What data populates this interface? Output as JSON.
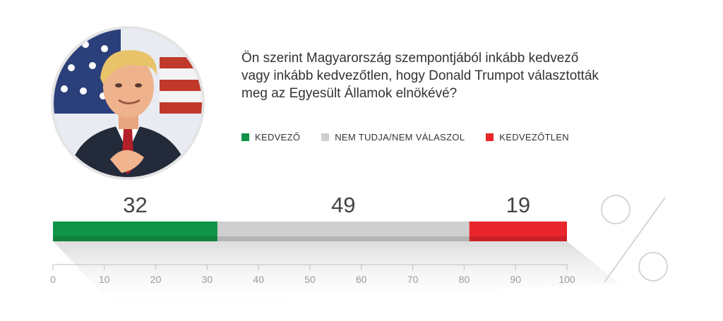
{
  "question": "Ön szerint Magyarország szempontjából inkább kedvező vagy inkább kedvezőtlen, hogy Donald Trumpot választották meg az Egyesült Államok elnökévé?",
  "colors": {
    "kedvezo": "#0f9347",
    "nem_tudja": "#cfcfcf",
    "kedvezotlen": "#e8262b",
    "axis": "#bfbfbf",
    "tick_text": "#9a9a9a"
  },
  "chart_data": {
    "type": "bar",
    "orientation": "horizontal-stacked",
    "categories": [
      "KEDVEZŐ",
      "NEM TUDJA/NEM VÁLASZOL",
      "KEDVEZŐTLEN"
    ],
    "series": [
      {
        "name": "KEDVEZŐ",
        "value": 32,
        "color": "#0f9347"
      },
      {
        "name": "NEM TUDJA/NEM VÁLASZOL",
        "value": 49,
        "color": "#cfcfcf"
      },
      {
        "name": "KEDVEZŐTLEN",
        "value": 19,
        "color": "#e8262b"
      }
    ],
    "value_labels": [
      "32",
      "49",
      "19"
    ],
    "xlim": [
      0,
      100
    ],
    "ticks": [
      "0",
      "10",
      "20",
      "30",
      "40",
      "50",
      "60",
      "70",
      "80",
      "90",
      "100"
    ],
    "unit_symbol": "%",
    "legend": "top"
  }
}
